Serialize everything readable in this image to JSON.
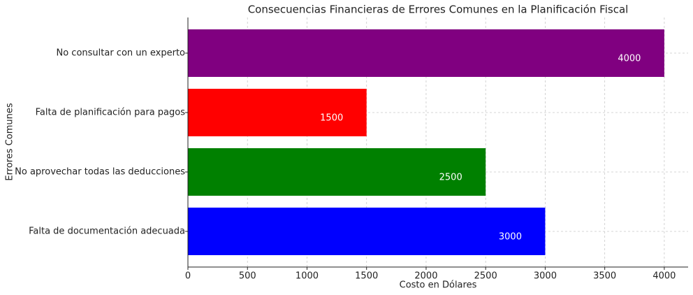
{
  "chart_data": {
    "type": "barh",
    "title": "Consecuencias Financieras de Errores Comunes en la Planificación Fiscal",
    "x_label": "Costo en Dólares",
    "y_label": "Errores Comunes",
    "categories": [
      "Falta de documentación adecuada",
      "No aprovechar todas las deducciones",
      "Falta de planificación para pagos",
      "No consultar con un experto"
    ],
    "values": [
      3000,
      2500,
      1500,
      4000
    ],
    "colors": [
      "#0000ff",
      "#008000",
      "#ff0000",
      "#800080"
    ],
    "xlim": [
      0,
      4200
    ],
    "xticks": [
      0,
      500,
      1000,
      1500,
      2000,
      2500,
      3000,
      3500,
      4000
    ],
    "grid": true
  }
}
